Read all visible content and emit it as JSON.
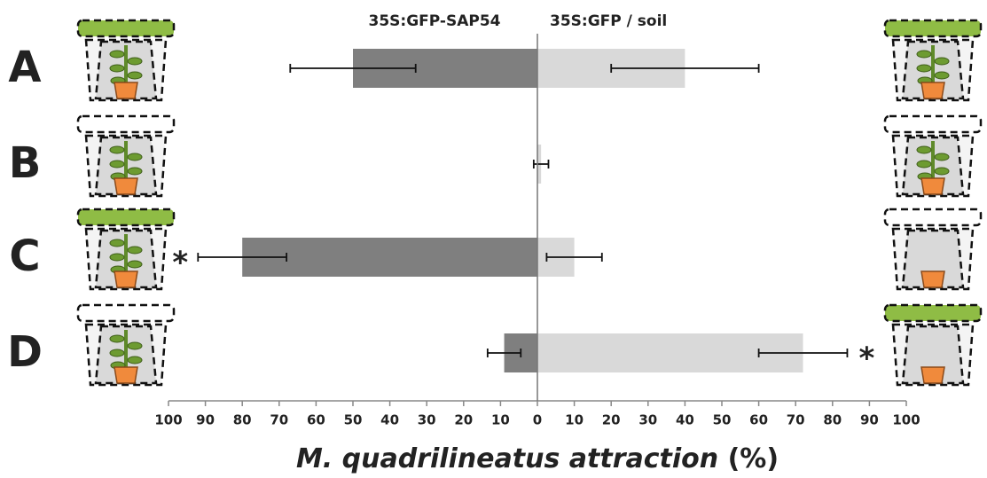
{
  "chart_data": {
    "type": "bar",
    "orientation": "horizontal",
    "categories": [
      "A",
      "B",
      "C",
      "D"
    ],
    "series": [
      {
        "name": "35S:GFP-SAP54",
        "color": "#7f7f7f",
        "values": [
          -50,
          0,
          -80,
          -9
        ],
        "errors": [
          17,
          0,
          12,
          4.5
        ]
      },
      {
        "name": "35S:GFP / soil",
        "color": "#d9d9d9",
        "values": [
          40,
          1,
          10,
          72
        ],
        "errors": [
          20,
          2,
          7.5,
          12
        ]
      }
    ],
    "xlim": [
      -100,
      100
    ],
    "xticks": [
      {
        "value": -100,
        "label": "100"
      },
      {
        "value": -90,
        "label": "90"
      },
      {
        "value": -80,
        "label": "80"
      },
      {
        "value": -70,
        "label": "70"
      },
      {
        "value": -60,
        "label": "60"
      },
      {
        "value": -50,
        "label": "50"
      },
      {
        "value": -40,
        "label": "40"
      },
      {
        "value": -30,
        "label": "30"
      },
      {
        "value": -20,
        "label": "20"
      },
      {
        "value": -10,
        "label": "10"
      },
      0,
      10,
      20,
      30,
      40,
      50,
      60,
      70,
      80,
      90,
      100
    ],
    "xlabel": "M. quadrilineatus attraction",
    "xlabel_unit": "(%)",
    "annotations": [
      {
        "text": "*",
        "category": "C",
        "series": "35S:GFP-SAP54"
      },
      {
        "text": "*",
        "category": "D",
        "series": "35S:GFP / soil"
      }
    ]
  }
}
